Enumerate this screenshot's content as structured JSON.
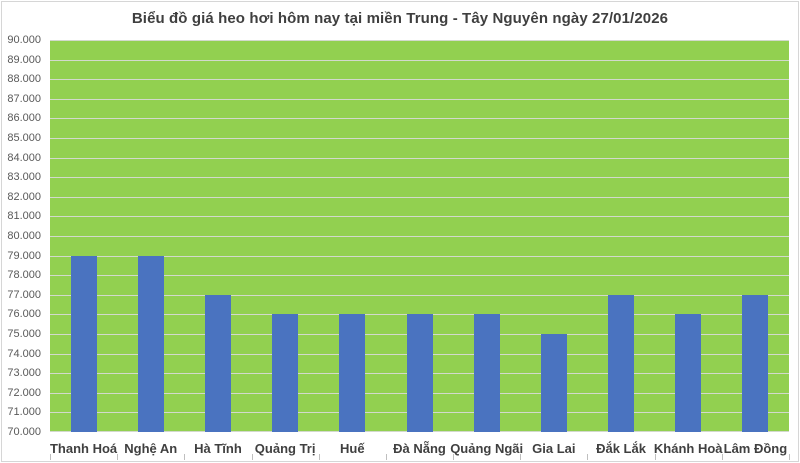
{
  "title": "Biểu đồ giá heo hơi hôm nay tại miền Trung - Tây Nguyên ngày 27/01/2026",
  "chart_data": {
    "type": "bar",
    "title": "Biểu đồ giá heo hơi hôm nay tại miền Trung - Tây Nguyên ngày 27/01/2026",
    "categories": [
      "Thanh Hoá",
      "Nghệ An",
      "Hà Tĩnh",
      "Quảng Trị",
      "Huế",
      "Đà Nẵng",
      "Quảng Ngãi",
      "Gia Lai",
      "Đắk Lắk",
      "Khánh Hoà",
      "Lâm Đồng"
    ],
    "values": [
      79000,
      79000,
      77000,
      76000,
      76000,
      76000,
      76000,
      75000,
      77000,
      76000,
      77000
    ],
    "xlabel": "",
    "ylabel": "",
    "ylim": [
      70000,
      90000
    ],
    "ytick_step": 1000,
    "ytick_format": "dot-thousands",
    "grid": true,
    "legend_position": "none",
    "colors": {
      "bar": "#4a73c0",
      "plot_background": "#92d050",
      "gridline": "rgba(217,217,217,0.9)",
      "title_text": "#3f3f3f",
      "y_axis_text": "#595959",
      "x_axis_text": "#404040",
      "frame_border": "#d6d6d6",
      "tick": "#bfbfbf"
    }
  }
}
